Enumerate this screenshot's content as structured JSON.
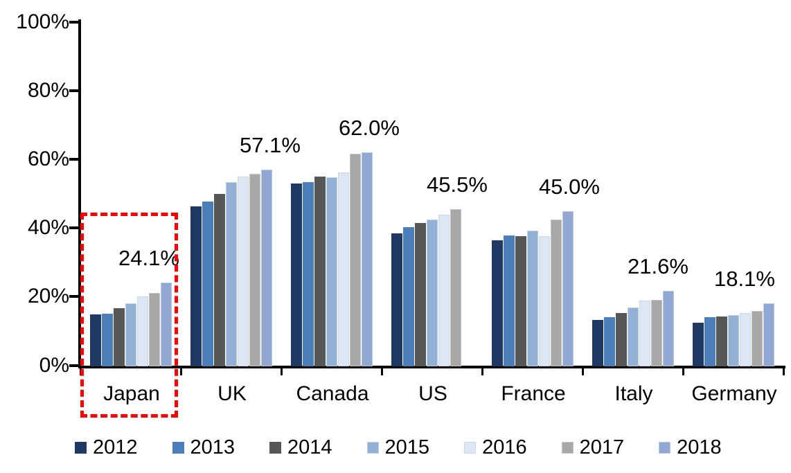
{
  "chart_data": {
    "type": "bar",
    "title": "",
    "xlabel": "",
    "ylabel": "",
    "unit": "percent",
    "ylim": [
      0,
      100
    ],
    "grid": false,
    "legend_position": "bottom",
    "ytick_values": [
      100,
      80,
      60,
      40,
      20,
      0
    ],
    "ytick_labels": [
      "100%",
      "80%",
      "60%",
      "40%",
      "20%",
      "0%"
    ],
    "years": [
      "2012",
      "2013",
      "2014",
      "2015",
      "2016",
      "2017",
      "2018"
    ],
    "series_style": [
      {
        "year": "2012",
        "color": "#1F3864",
        "border": "#1F3864"
      },
      {
        "year": "2013",
        "color": "#4C7EBC",
        "border": "#4C7EBC"
      },
      {
        "year": "2014",
        "color": "#575757",
        "border": "#575757"
      },
      {
        "year": "2015",
        "color": "#93B1D7",
        "border": "#BCD0E8"
      },
      {
        "year": "2016",
        "color": "#DDE7F3",
        "border": "#C9D8EC"
      },
      {
        "year": "2017",
        "color": "#A8A8A8",
        "border": "#C5C5C5"
      },
      {
        "year": "2018",
        "color": "#92A7D2",
        "border": "#B7C7E6"
      }
    ],
    "groups": [
      {
        "country": "Japan",
        "callout": "24.1%",
        "highlighted": true,
        "values": [
          14.8,
          15.0,
          16.7,
          18.1,
          20.0,
          21.1,
          24.1
        ]
      },
      {
        "country": "UK",
        "callout": "57.1%",
        "highlighted": false,
        "values": [
          46.3,
          47.8,
          50.0,
          53.3,
          55.0,
          55.8,
          57.1
        ]
      },
      {
        "country": "Canada",
        "callout": "62.0%",
        "highlighted": false,
        "values": [
          53.0,
          53.4,
          55.0,
          54.8,
          56.2,
          61.7,
          62.0
        ]
      },
      {
        "country": "US",
        "callout": "45.5%",
        "highlighted": false,
        "values": [
          38.5,
          40.3,
          41.4,
          42.5,
          43.8,
          45.5,
          null
        ]
      },
      {
        "country": "France",
        "callout": "45.0%",
        "highlighted": false,
        "values": [
          36.5,
          37.8,
          37.7,
          39.2,
          37.6,
          42.5,
          45.0
        ]
      },
      {
        "country": "Italy",
        "callout": "21.6%",
        "highlighted": false,
        "values": [
          13.3,
          14.1,
          15.2,
          16.8,
          18.9,
          19.1,
          21.6
        ]
      },
      {
        "country": "Germany",
        "callout": "18.1%",
        "highlighted": false,
        "values": [
          12.5,
          14.0,
          14.3,
          14.6,
          15.2,
          15.8,
          18.1
        ]
      }
    ],
    "highlight_box_color": "#FF0000"
  }
}
